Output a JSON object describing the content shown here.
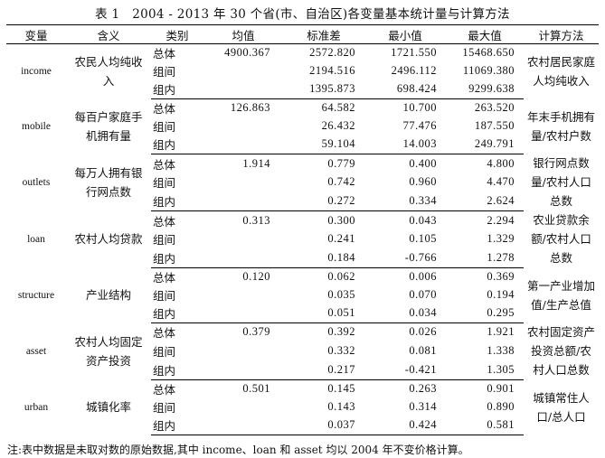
{
  "title": "表 1　2004 - 2013 年 30 个省(市、自治区)各变量基本统计量与计算方法",
  "headers": [
    "变量",
    "含义",
    "类别",
    "均值",
    "标准差",
    "最小值",
    "最大值",
    "计算方法"
  ],
  "rows": [
    {
      "var": "income",
      "meaning": "农民人均纯收入",
      "mean": "4900.367",
      "method": "农村居民家庭人均纯收入",
      "stats": [
        {
          "cat": "总体",
          "sd": "2572.820",
          "min": "1721.550",
          "max": "15468.650"
        },
        {
          "cat": "组间",
          "sd": "2194.516",
          "min": "2496.112",
          "max": "11069.380"
        },
        {
          "cat": "组内",
          "sd": "1395.873",
          "min": "698.424",
          "max": "9299.638"
        }
      ]
    },
    {
      "var": "mobile",
      "meaning": "每百户家庭手机拥有量",
      "mean": "126.863",
      "method": "年末手机拥有量/农村户数",
      "stats": [
        {
          "cat": "总体",
          "sd": "64.582",
          "min": "10.700",
          "max": "263.520"
        },
        {
          "cat": "组间",
          "sd": "26.432",
          "min": "77.476",
          "max": "187.550"
        },
        {
          "cat": "组内",
          "sd": "59.104",
          "min": "14.003",
          "max": "249.791"
        }
      ]
    },
    {
      "var": "outlets",
      "meaning": "每万人拥有银行网点数",
      "mean": "1.914",
      "method": "银行网点数量/农村人口总数",
      "stats": [
        {
          "cat": "总体",
          "sd": "0.779",
          "min": "0.400",
          "max": "4.800"
        },
        {
          "cat": "组间",
          "sd": "0.742",
          "min": "0.960",
          "max": "4.470"
        },
        {
          "cat": "组内",
          "sd": "0.272",
          "min": "0.334",
          "max": "2.624"
        }
      ]
    },
    {
      "var": "loan",
      "meaning": "农村人均贷款",
      "mean": "0.313",
      "method": "农业贷款余额/农村人口总数",
      "stats": [
        {
          "cat": "总体",
          "sd": "0.300",
          "min": "0.043",
          "max": "2.294"
        },
        {
          "cat": "组间",
          "sd": "0.241",
          "min": "0.105",
          "max": "1.329"
        },
        {
          "cat": "组内",
          "sd": "0.184",
          "min": "-0.766",
          "max": "1.278"
        }
      ]
    },
    {
      "var": "structure",
      "meaning": "产业结构",
      "mean": "0.120",
      "method": "第一产业增加值/生产总值",
      "stats": [
        {
          "cat": "总体",
          "sd": "0.062",
          "min": "0.006",
          "max": "0.369"
        },
        {
          "cat": "组间",
          "sd": "0.035",
          "min": "0.070",
          "max": "0.194"
        },
        {
          "cat": "组内",
          "sd": "0.051",
          "min": "0.034",
          "max": "0.295"
        }
      ]
    },
    {
      "var": "asset",
      "meaning": "农村人均固定资产投资",
      "mean": "0.379",
      "method": "农村固定资产投资总额/农村人口总数",
      "stats": [
        {
          "cat": "总体",
          "sd": "0.392",
          "min": "0.026",
          "max": "1.921"
        },
        {
          "cat": "组间",
          "sd": "0.332",
          "min": "0.081",
          "max": "1.338"
        },
        {
          "cat": "组内",
          "sd": "0.217",
          "min": "-0.421",
          "max": "1.305"
        }
      ]
    },
    {
      "var": "urban",
      "meaning": "城镇化率",
      "mean": "0.501",
      "method": "城镇常住人口/总人口",
      "stats": [
        {
          "cat": "总体",
          "sd": "0.145",
          "min": "0.263",
          "max": "0.901"
        },
        {
          "cat": "组间",
          "sd": "0.143",
          "min": "0.314",
          "max": "0.890"
        },
        {
          "cat": "组内",
          "sd": "0.037",
          "min": "0.424",
          "max": "0.581"
        }
      ]
    }
  ],
  "note": "注:表中数据是未取对数的原始数据,其中 income、loan 和 asset 均以 2004 年不变价格计算。"
}
